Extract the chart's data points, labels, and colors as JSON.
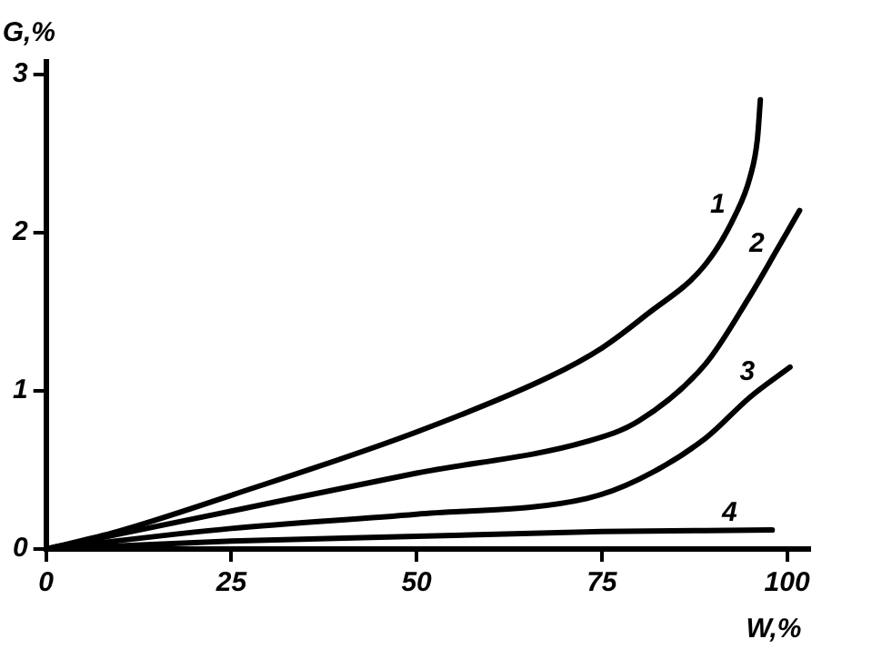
{
  "chart_data": {
    "type": "line",
    "xlabel": "W,%",
    "ylabel": "G,%",
    "xlim": [
      0,
      103
    ],
    "ylim": [
      0,
      3.08
    ],
    "xticks": [
      0,
      25,
      50,
      75,
      100
    ],
    "yticks": [
      0,
      1,
      2,
      3
    ],
    "grid": false,
    "legend": false,
    "marker": "none",
    "line_style": "solid",
    "series": [
      {
        "name": "1",
        "color": "#000000",
        "x": [
          0,
          9.6,
          25,
          50,
          68,
          75,
          81,
          89,
          93,
          95,
          96,
          96.4
        ],
        "values": [
          0,
          0.11,
          0.34,
          0.74,
          1.09,
          1.27,
          1.48,
          1.8,
          2.11,
          2.35,
          2.59,
          2.84
        ]
      },
      {
        "name": "2",
        "color": "#000000",
        "x": [
          0,
          25,
          50,
          73,
          80,
          89,
          95,
          98.5,
          101.7
        ],
        "values": [
          0,
          0.24,
          0.48,
          0.68,
          0.81,
          1.17,
          1.6,
          1.88,
          2.14
        ]
      },
      {
        "name": "3",
        "color": "#000000",
        "x": [
          0,
          25,
          50,
          73,
          80,
          89,
          95,
          100.4
        ],
        "values": [
          0,
          0.13,
          0.22,
          0.32,
          0.44,
          0.7,
          0.96,
          1.15
        ]
      },
      {
        "name": "4",
        "color": "#000000",
        "x": [
          0,
          25,
          50,
          75,
          98
        ],
        "values": [
          0,
          0.05,
          0.08,
          0.11,
          0.12
        ]
      }
    ]
  }
}
